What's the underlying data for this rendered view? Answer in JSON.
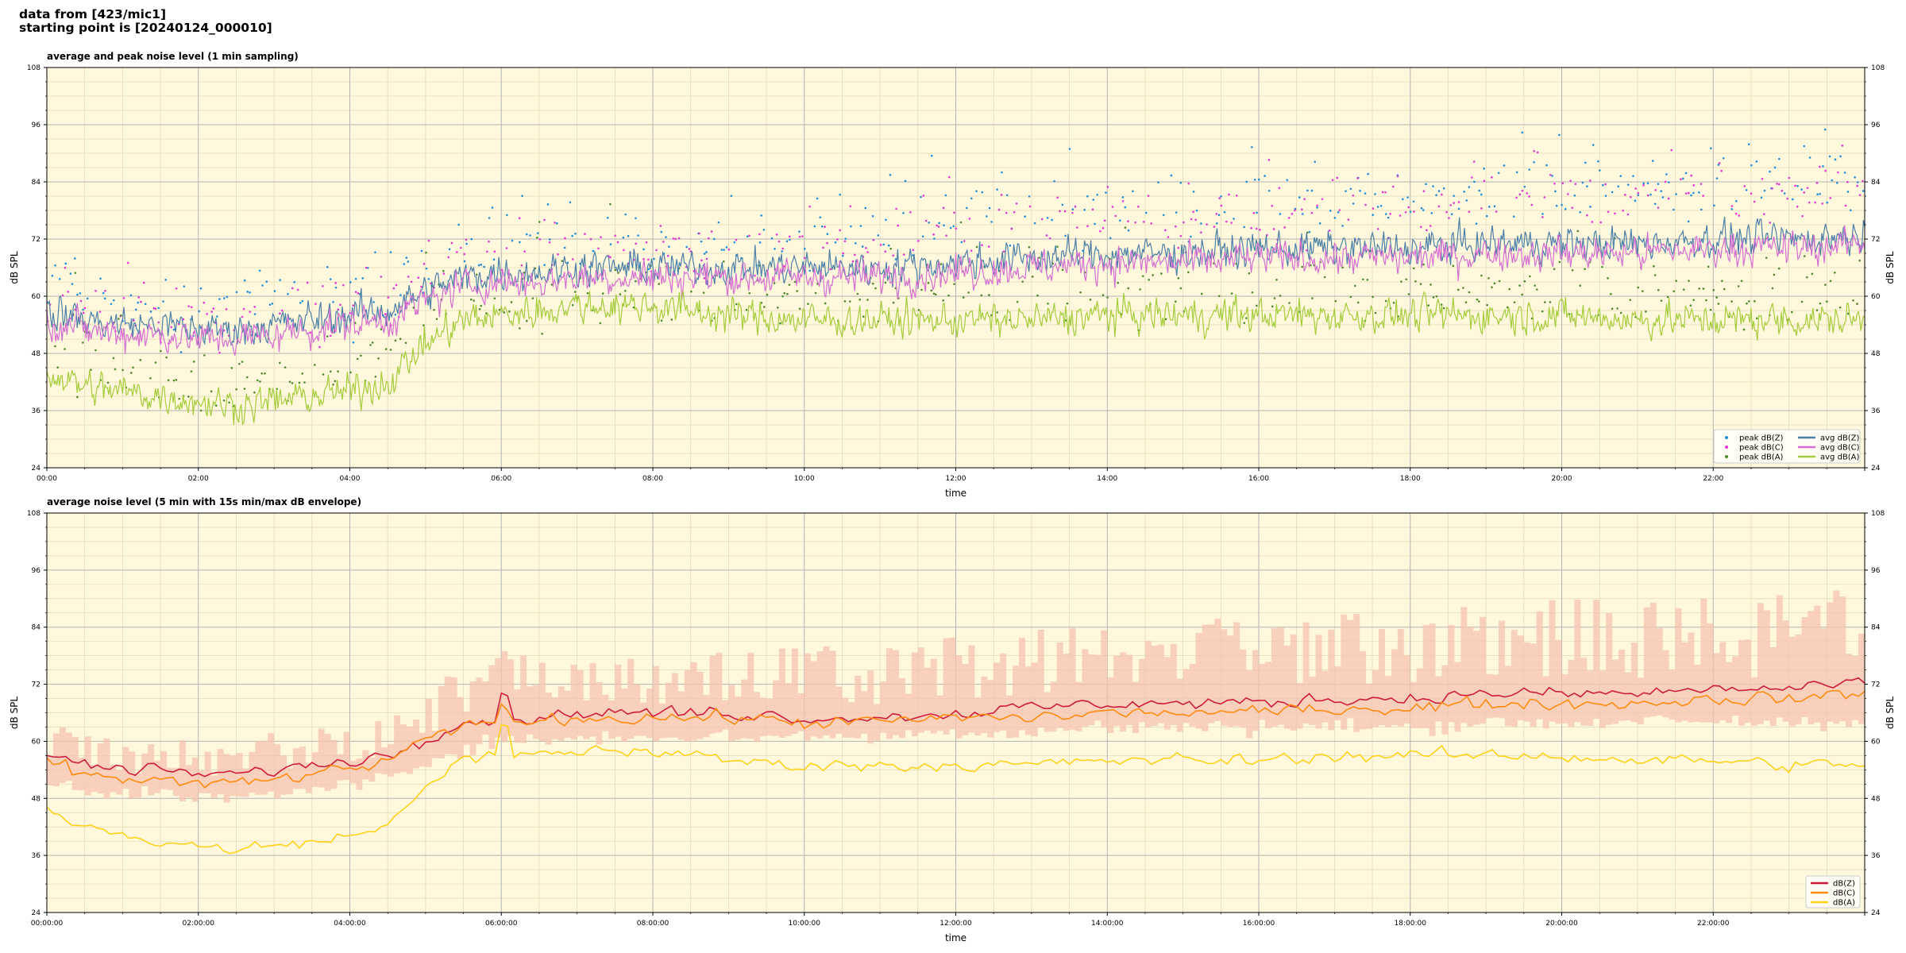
{
  "header": {
    "line1": "data from [423/mic1]",
    "line2": "starting point is [20240124_000010]"
  },
  "chart_data": [
    {
      "type": "line",
      "title": "average and peak noise level (1 min sampling)",
      "xlabel": "time",
      "ylabel": "dB SPL",
      "xlim": [
        0,
        24
      ],
      "ylim": [
        24,
        108
      ],
      "yticks": [
        24,
        36,
        48,
        60,
        72,
        84,
        96,
        108
      ],
      "xtick_labels": [
        "00:00",
        "02:00",
        "04:00",
        "06:00",
        "08:00",
        "10:00",
        "12:00",
        "14:00",
        "16:00",
        "18:00",
        "20:00",
        "22:00"
      ],
      "grid": true,
      "legend_position": "bottom-right",
      "x_hours": [
        0,
        0.5,
        1,
        1.5,
        2,
        2.5,
        3,
        3.5,
        4,
        4.5,
        5,
        5.5,
        6,
        6.5,
        7,
        7.5,
        8,
        9,
        10,
        11,
        12,
        13,
        14,
        15,
        16,
        17,
        18,
        19,
        20,
        21,
        22,
        23,
        24
      ],
      "series": [
        {
          "name": "peak dB(Z)",
          "style": "scatter",
          "color": "#1f8fd6",
          "values": [
            64,
            61,
            60,
            59,
            58,
            57,
            58,
            59,
            60,
            61,
            66,
            70,
            70,
            70,
            71,
            71,
            71,
            71,
            72,
            74,
            76,
            77,
            78,
            78,
            79,
            80,
            80,
            81,
            82,
            82,
            83,
            84,
            84
          ]
        },
        {
          "name": "peak dB(C)",
          "style": "scatter",
          "color": "#e636d2",
          "values": [
            61,
            58,
            57,
            56,
            55,
            54,
            55,
            56,
            57,
            58,
            64,
            68,
            68,
            68,
            69,
            69,
            69,
            69,
            70,
            72,
            74,
            75,
            76,
            76,
            77,
            78,
            78,
            79,
            80,
            80,
            81,
            82,
            82
          ]
        },
        {
          "name": "peak dB(A)",
          "style": "scatter",
          "color": "#4d8a2f",
          "values": [
            50,
            46,
            45,
            44,
            43,
            42,
            43,
            44,
            45,
            47,
            55,
            59,
            59,
            60,
            61,
            61,
            61,
            60,
            60,
            60,
            61,
            61,
            61,
            61,
            61,
            61,
            61,
            61,
            61,
            60,
            60,
            60,
            60
          ]
        },
        {
          "name": "avg dB(Z)",
          "style": "line",
          "color": "#4a7fa8",
          "values": [
            57,
            55,
            54,
            54,
            53,
            53,
            54,
            55,
            56,
            57,
            61,
            64,
            65,
            65,
            66,
            66,
            66,
            66,
            66,
            66,
            67,
            68,
            69,
            69,
            70,
            70,
            70,
            71,
            71,
            71,
            72,
            72,
            73
          ]
        },
        {
          "name": "avg dB(C)",
          "style": "line",
          "color": "#d66ed2",
          "values": [
            55,
            53,
            52,
            52,
            51,
            51,
            52,
            53,
            54,
            55,
            59,
            62,
            63,
            63,
            64,
            64,
            64,
            64,
            64,
            64,
            65,
            66,
            67,
            67,
            68,
            68,
            68,
            69,
            69,
            69,
            70,
            70,
            71
          ]
        },
        {
          "name": "avg dB(A)",
          "style": "line",
          "color": "#a4cc3c",
          "values": [
            44,
            41,
            40,
            39,
            38,
            37,
            38,
            39,
            40,
            42,
            50,
            55,
            56,
            57,
            58,
            58,
            58,
            56,
            55,
            55,
            55,
            55,
            56,
            56,
            56,
            56,
            56,
            56,
            56,
            55,
            55,
            55,
            55
          ]
        }
      ]
    },
    {
      "type": "line",
      "title": "average noise level (5 min with 15s min/max dB envelope)",
      "xlabel": "time",
      "ylabel": "dB SPL",
      "xlim": [
        0,
        24
      ],
      "ylim": [
        24,
        108
      ],
      "yticks": [
        24,
        36,
        48,
        60,
        72,
        84,
        96,
        108
      ],
      "xtick_labels": [
        "00:00:00",
        "02:00:00",
        "04:00:00",
        "06:00:00",
        "08:00:00",
        "10:00:00",
        "12:00:00",
        "14:00:00",
        "16:00:00",
        "18:00:00",
        "20:00:00",
        "22:00:00"
      ],
      "grid": true,
      "legend_position": "bottom-right",
      "envelope_color": "#f6c3b0",
      "x_hours": [
        0,
        0.5,
        1,
        1.5,
        2,
        2.5,
        3,
        3.5,
        4,
        4.5,
        5,
        5.5,
        6,
        6.5,
        7,
        7.5,
        8,
        9,
        10,
        11,
        12,
        13,
        14,
        15,
        16,
        17,
        18,
        19,
        20,
        21,
        22,
        23,
        24
      ],
      "envelope_min": [
        52,
        50,
        49,
        49,
        48,
        48,
        49,
        50,
        51,
        52,
        56,
        59,
        60,
        60,
        61,
        61,
        61,
        61,
        61,
        61,
        62,
        62,
        63,
        63,
        63,
        63,
        63,
        64,
        64,
        64,
        64,
        64,
        64
      ],
      "envelope_max": [
        66,
        63,
        62,
        62,
        61,
        61,
        62,
        63,
        64,
        66,
        72,
        76,
        80,
        79,
        80,
        80,
        80,
        80,
        80,
        81,
        82,
        84,
        86,
        86,
        87,
        88,
        88,
        89,
        90,
        90,
        91,
        92,
        92
      ],
      "series": [
        {
          "name": "dB(Z)",
          "color": "#d01c3c",
          "values": [
            57,
            55,
            54,
            54,
            53,
            53,
            54,
            55,
            56,
            57,
            61,
            64,
            65,
            65,
            66,
            66,
            66,
            66,
            65,
            65,
            66,
            67,
            68,
            68,
            68,
            69,
            69,
            70,
            70,
            70,
            71,
            71,
            72
          ]
        },
        {
          "name": "dB(C)",
          "color": "#ff8c10",
          "values": [
            56,
            53,
            52,
            52,
            51,
            51,
            52,
            53,
            54,
            56,
            60,
            63,
            64,
            64,
            65,
            65,
            65,
            65,
            64,
            64,
            65,
            65,
            66,
            66,
            66,
            67,
            67,
            68,
            68,
            68,
            69,
            69,
            70
          ]
        },
        {
          "name": "dB(A)",
          "color": "#ffd21a",
          "values": [
            46,
            42,
            40,
            39,
            38,
            37,
            38,
            39,
            40,
            42,
            51,
            56,
            57,
            57,
            58,
            58,
            58,
            56,
            55,
            55,
            55,
            55,
            56,
            56,
            56,
            57,
            57,
            57,
            57,
            56,
            56,
            55,
            55
          ]
        }
      ]
    }
  ]
}
